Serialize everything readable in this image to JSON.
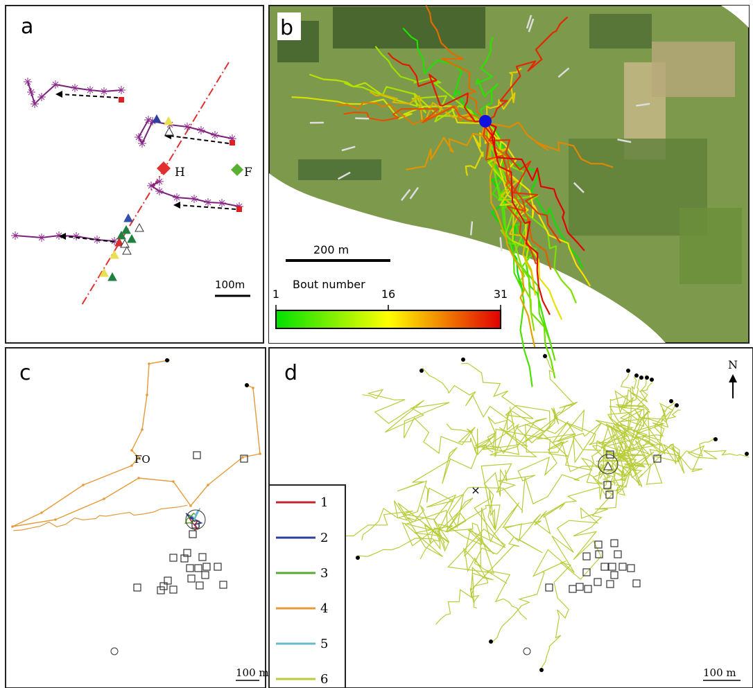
{
  "panels": [
    {
      "label": "a",
      "annotations": [
        "H",
        "F"
      ],
      "scale_bar": "100m"
    },
    {
      "label": "b",
      "scale_bar": "200 m",
      "colorbar": {
        "title": "Bout number",
        "range": [
          1,
          31
        ],
        "ticks": [
          1,
          16,
          31
        ]
      }
    },
    {
      "label": "c",
      "annotations": [
        "FO"
      ],
      "scale_bar": "100 m"
    },
    {
      "label": "d",
      "north": "N",
      "scale_bar": "100 m",
      "legend": [
        {
          "label": "1",
          "color": "#c0272d"
        },
        {
          "label": "2",
          "color": "#2e3f99"
        },
        {
          "label": "3",
          "color": "#5aa830"
        },
        {
          "label": "4",
          "color": "#e59a3a"
        },
        {
          "label": "5",
          "color": "#6ab8cc"
        },
        {
          "label": "6",
          "color": "#b8cc3a"
        }
      ]
    }
  ]
}
